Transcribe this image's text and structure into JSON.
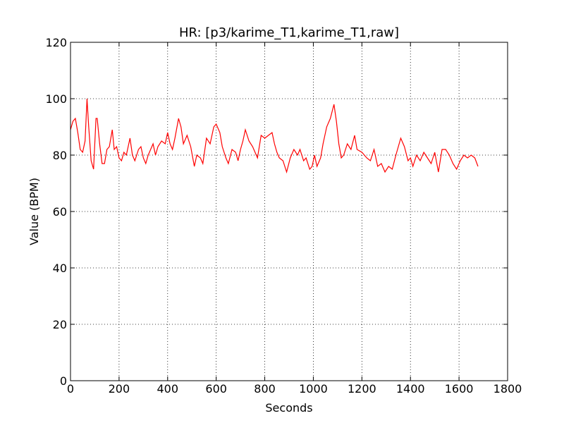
{
  "chart_data": {
    "type": "line",
    "title": "HR: [p3/karime_T1,karime_T1,raw]",
    "xlabel": "Seconds",
    "ylabel": "Value (BPM)",
    "xlim": [
      0,
      1800
    ],
    "ylim": [
      0,
      120
    ],
    "xticks": [
      0,
      200,
      400,
      600,
      800,
      1000,
      1200,
      1400,
      1600,
      1800
    ],
    "yticks": [
      0,
      20,
      40,
      60,
      80,
      100,
      120
    ],
    "grid": true,
    "series": [
      {
        "name": "HR",
        "color": "#ff0000",
        "x": [
          0,
          10,
          20,
          30,
          40,
          50,
          60,
          68,
          75,
          85,
          95,
          105,
          110,
          120,
          130,
          140,
          150,
          160,
          172,
          180,
          190,
          200,
          210,
          220,
          230,
          245,
          255,
          265,
          280,
          290,
          300,
          310,
          320,
          330,
          340,
          350,
          360,
          375,
          390,
          400,
          410,
          420,
          430,
          445,
          455,
          465,
          480,
          495,
          510,
          520,
          535,
          545,
          560,
          575,
          590,
          600,
          615,
          625,
          640,
          650,
          665,
          680,
          690,
          700,
          710,
          720,
          735,
          750,
          760,
          770,
          785,
          800,
          815,
          830,
          840,
          850,
          860,
          875,
          890,
          905,
          920,
          935,
          945,
          960,
          970,
          985,
          995,
          1005,
          1015,
          1030,
          1040,
          1055,
          1070,
          1085,
          1095,
          1105,
          1115,
          1125,
          1140,
          1155,
          1170,
          1180,
          1200,
          1220,
          1235,
          1250,
          1265,
          1280,
          1295,
          1310,
          1325,
          1340,
          1360,
          1375,
          1390,
          1400,
          1410,
          1425,
          1440,
          1455,
          1470,
          1485,
          1500,
          1515,
          1530,
          1545,
          1560,
          1575,
          1590,
          1605,
          1620,
          1635,
          1650,
          1665,
          1678
        ],
        "values": [
          89,
          92,
          93,
          88,
          82,
          81,
          85,
          100,
          90,
          78,
          75,
          93,
          93,
          84,
          77,
          77,
          82,
          83,
          89,
          82,
          83,
          79,
          78,
          81,
          80,
          86,
          80,
          78,
          82,
          83,
          79,
          77,
          80,
          82,
          84,
          80,
          83,
          85,
          84,
          88,
          84,
          82,
          86,
          93,
          90,
          84,
          87,
          83,
          76,
          80,
          79,
          77,
          86,
          84,
          90,
          91,
          88,
          83,
          79,
          77,
          82,
          81,
          78,
          82,
          85,
          89,
          85,
          83,
          81,
          79,
          87,
          86,
          87,
          88,
          84,
          81,
          79,
          78,
          74,
          79,
          82,
          80,
          82,
          78,
          79,
          75,
          76,
          80,
          76,
          79,
          84,
          90,
          93,
          98,
          92,
          84,
          79,
          80,
          84,
          82,
          87,
          82,
          81,
          79,
          78,
          82,
          76,
          77,
          74,
          76,
          75,
          80,
          86,
          83,
          78,
          79,
          76,
          80,
          78,
          81,
          79,
          77,
          81,
          74,
          82,
          82,
          80,
          77,
          75,
          78,
          80,
          79,
          80,
          79,
          76
        ]
      }
    ]
  }
}
